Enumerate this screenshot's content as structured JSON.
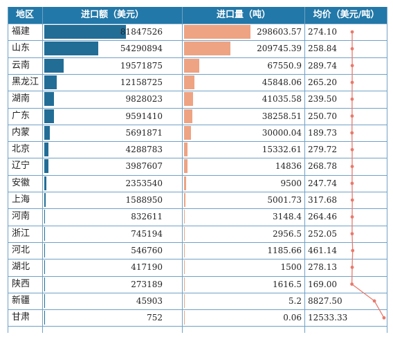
{
  "chart_data": {
    "type": "table",
    "headers": {
      "region": "地区",
      "amount": "进口额（美元）",
      "quantity": "进口量（吨）",
      "price": "均价（美元/吨）"
    },
    "rows": [
      {
        "region": "福建",
        "amount": 81847526,
        "amount_text": "81847526",
        "quantity": 298603.57,
        "quantity_text": "298603.57",
        "price": 274.1,
        "price_text": "274.10"
      },
      {
        "region": "山东",
        "amount": 54290894,
        "amount_text": "54290894",
        "quantity": 209745.39,
        "quantity_text": "209745.39",
        "price": 258.84,
        "price_text": "258.84"
      },
      {
        "region": "云南",
        "amount": 19571875,
        "amount_text": "19571875",
        "quantity": 67550.9,
        "quantity_text": "67550.9",
        "price": 289.74,
        "price_text": "289.74"
      },
      {
        "region": "黑龙江",
        "amount": 12158725,
        "amount_text": "12158725",
        "quantity": 45848.06,
        "quantity_text": "45848.06",
        "price": 265.2,
        "price_text": "265.20"
      },
      {
        "region": "湖南",
        "amount": 9828023,
        "amount_text": "9828023",
        "quantity": 41035.58,
        "quantity_text": "41035.58",
        "price": 239.5,
        "price_text": "239.50"
      },
      {
        "region": "广东",
        "amount": 9591410,
        "amount_text": "9591410",
        "quantity": 38258.51,
        "quantity_text": "38258.51",
        "price": 250.7,
        "price_text": "250.70"
      },
      {
        "region": "内蒙",
        "amount": 5691871,
        "amount_text": "5691871",
        "quantity": 30000.04,
        "quantity_text": "30000.04",
        "price": 189.73,
        "price_text": "189.73"
      },
      {
        "region": "北京",
        "amount": 4288783,
        "amount_text": "4288783",
        "quantity": 15332.61,
        "quantity_text": "15332.61",
        "price": 279.72,
        "price_text": "279.72"
      },
      {
        "region": "辽宁",
        "amount": 3987607,
        "amount_text": "3987607",
        "quantity": 14836,
        "quantity_text": "14836",
        "price": 268.78,
        "price_text": "268.78"
      },
      {
        "region": "安徽",
        "amount": 2353540,
        "amount_text": "2353540",
        "quantity": 9500,
        "quantity_text": "9500",
        "price": 247.74,
        "price_text": "247.74"
      },
      {
        "region": "上海",
        "amount": 1588950,
        "amount_text": "1588950",
        "quantity": 5001.73,
        "quantity_text": "5001.73",
        "price": 317.68,
        "price_text": "317.68"
      },
      {
        "region": "河南",
        "amount": 832611,
        "amount_text": "832611",
        "quantity": 3148.4,
        "quantity_text": "3148.4",
        "price": 264.46,
        "price_text": "264.46"
      },
      {
        "region": "浙江",
        "amount": 745194,
        "amount_text": "745194",
        "quantity": 2956.5,
        "quantity_text": "2956.5",
        "price": 252.05,
        "price_text": "252.05"
      },
      {
        "region": "河北",
        "amount": 546760,
        "amount_text": "546760",
        "quantity": 1185.66,
        "quantity_text": "1185.66",
        "price": 461.14,
        "price_text": "461.14"
      },
      {
        "region": "湖北",
        "amount": 417190,
        "amount_text": "417190",
        "quantity": 1500,
        "quantity_text": "1500",
        "price": 278.13,
        "price_text": "278.13"
      },
      {
        "region": "陕西",
        "amount": 273189,
        "amount_text": "273189",
        "quantity": 1616.5,
        "quantity_text": "1616.5",
        "price": 169.0,
        "price_text": "169.00"
      },
      {
        "region": "新疆",
        "amount": 45903,
        "amount_text": "45903",
        "quantity": 5.2,
        "quantity_text": "5.2",
        "price": 8827.5,
        "price_text": "8827.50"
      },
      {
        "region": "甘肃",
        "amount": 752,
        "amount_text": "752",
        "quantity": 0.06,
        "quantity_text": "0.06",
        "price": 12533.33,
        "price_text": "12533.33"
      }
    ],
    "colors": {
      "header": "#2278a8",
      "amount_bar": "#226d96",
      "quantity_bar": "#eea382",
      "price_line": "#e8796c",
      "grid": "#6fa1c6"
    }
  }
}
